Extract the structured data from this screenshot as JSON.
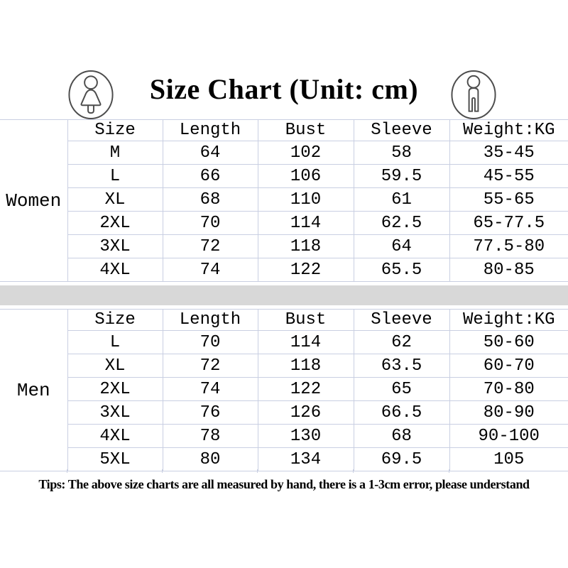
{
  "title": "Size Chart (Unit: cm)",
  "tips": "Tips: The above size charts are all measured by hand, there is a 1-3cm error, please understand",
  "icons": {
    "left": "female-icon",
    "right": "male-icon"
  },
  "colors": {
    "background": "#ffffff",
    "text": "#000000",
    "grid_border": "#c9cfe2",
    "divider_band": "#d8d8d8",
    "icon_stroke": "#4d4d4d"
  },
  "chart_data": [
    {
      "type": "table",
      "title": "Women",
      "columns": [
        "Size",
        "Length",
        "Bust",
        "Sleeve",
        "Weight:KG"
      ],
      "rows": [
        [
          "M",
          "64",
          "102",
          "58",
          "35-45"
        ],
        [
          "L",
          "66",
          "106",
          "59.5",
          "45-55"
        ],
        [
          "XL",
          "68",
          "110",
          "61",
          "55-65"
        ],
        [
          "2XL",
          "70",
          "114",
          "62.5",
          "65-77.5"
        ],
        [
          "3XL",
          "72",
          "118",
          "64",
          "77.5-80"
        ],
        [
          "4XL",
          "74",
          "122",
          "65.5",
          "80-85"
        ]
      ]
    },
    {
      "type": "table",
      "title": "Men",
      "columns": [
        "Size",
        "Length",
        "Bust",
        "Sleeve",
        "Weight:KG"
      ],
      "rows": [
        [
          "L",
          "70",
          "114",
          "62",
          "50-60"
        ],
        [
          "XL",
          "72",
          "118",
          "63.5",
          "60-70"
        ],
        [
          "2XL",
          "74",
          "122",
          "65",
          "70-80"
        ],
        [
          "3XL",
          "76",
          "126",
          "66.5",
          "80-90"
        ],
        [
          "4XL",
          "78",
          "130",
          "68",
          "90-100"
        ],
        [
          "5XL",
          "80",
          "134",
          "69.5",
          "105"
        ]
      ]
    }
  ]
}
